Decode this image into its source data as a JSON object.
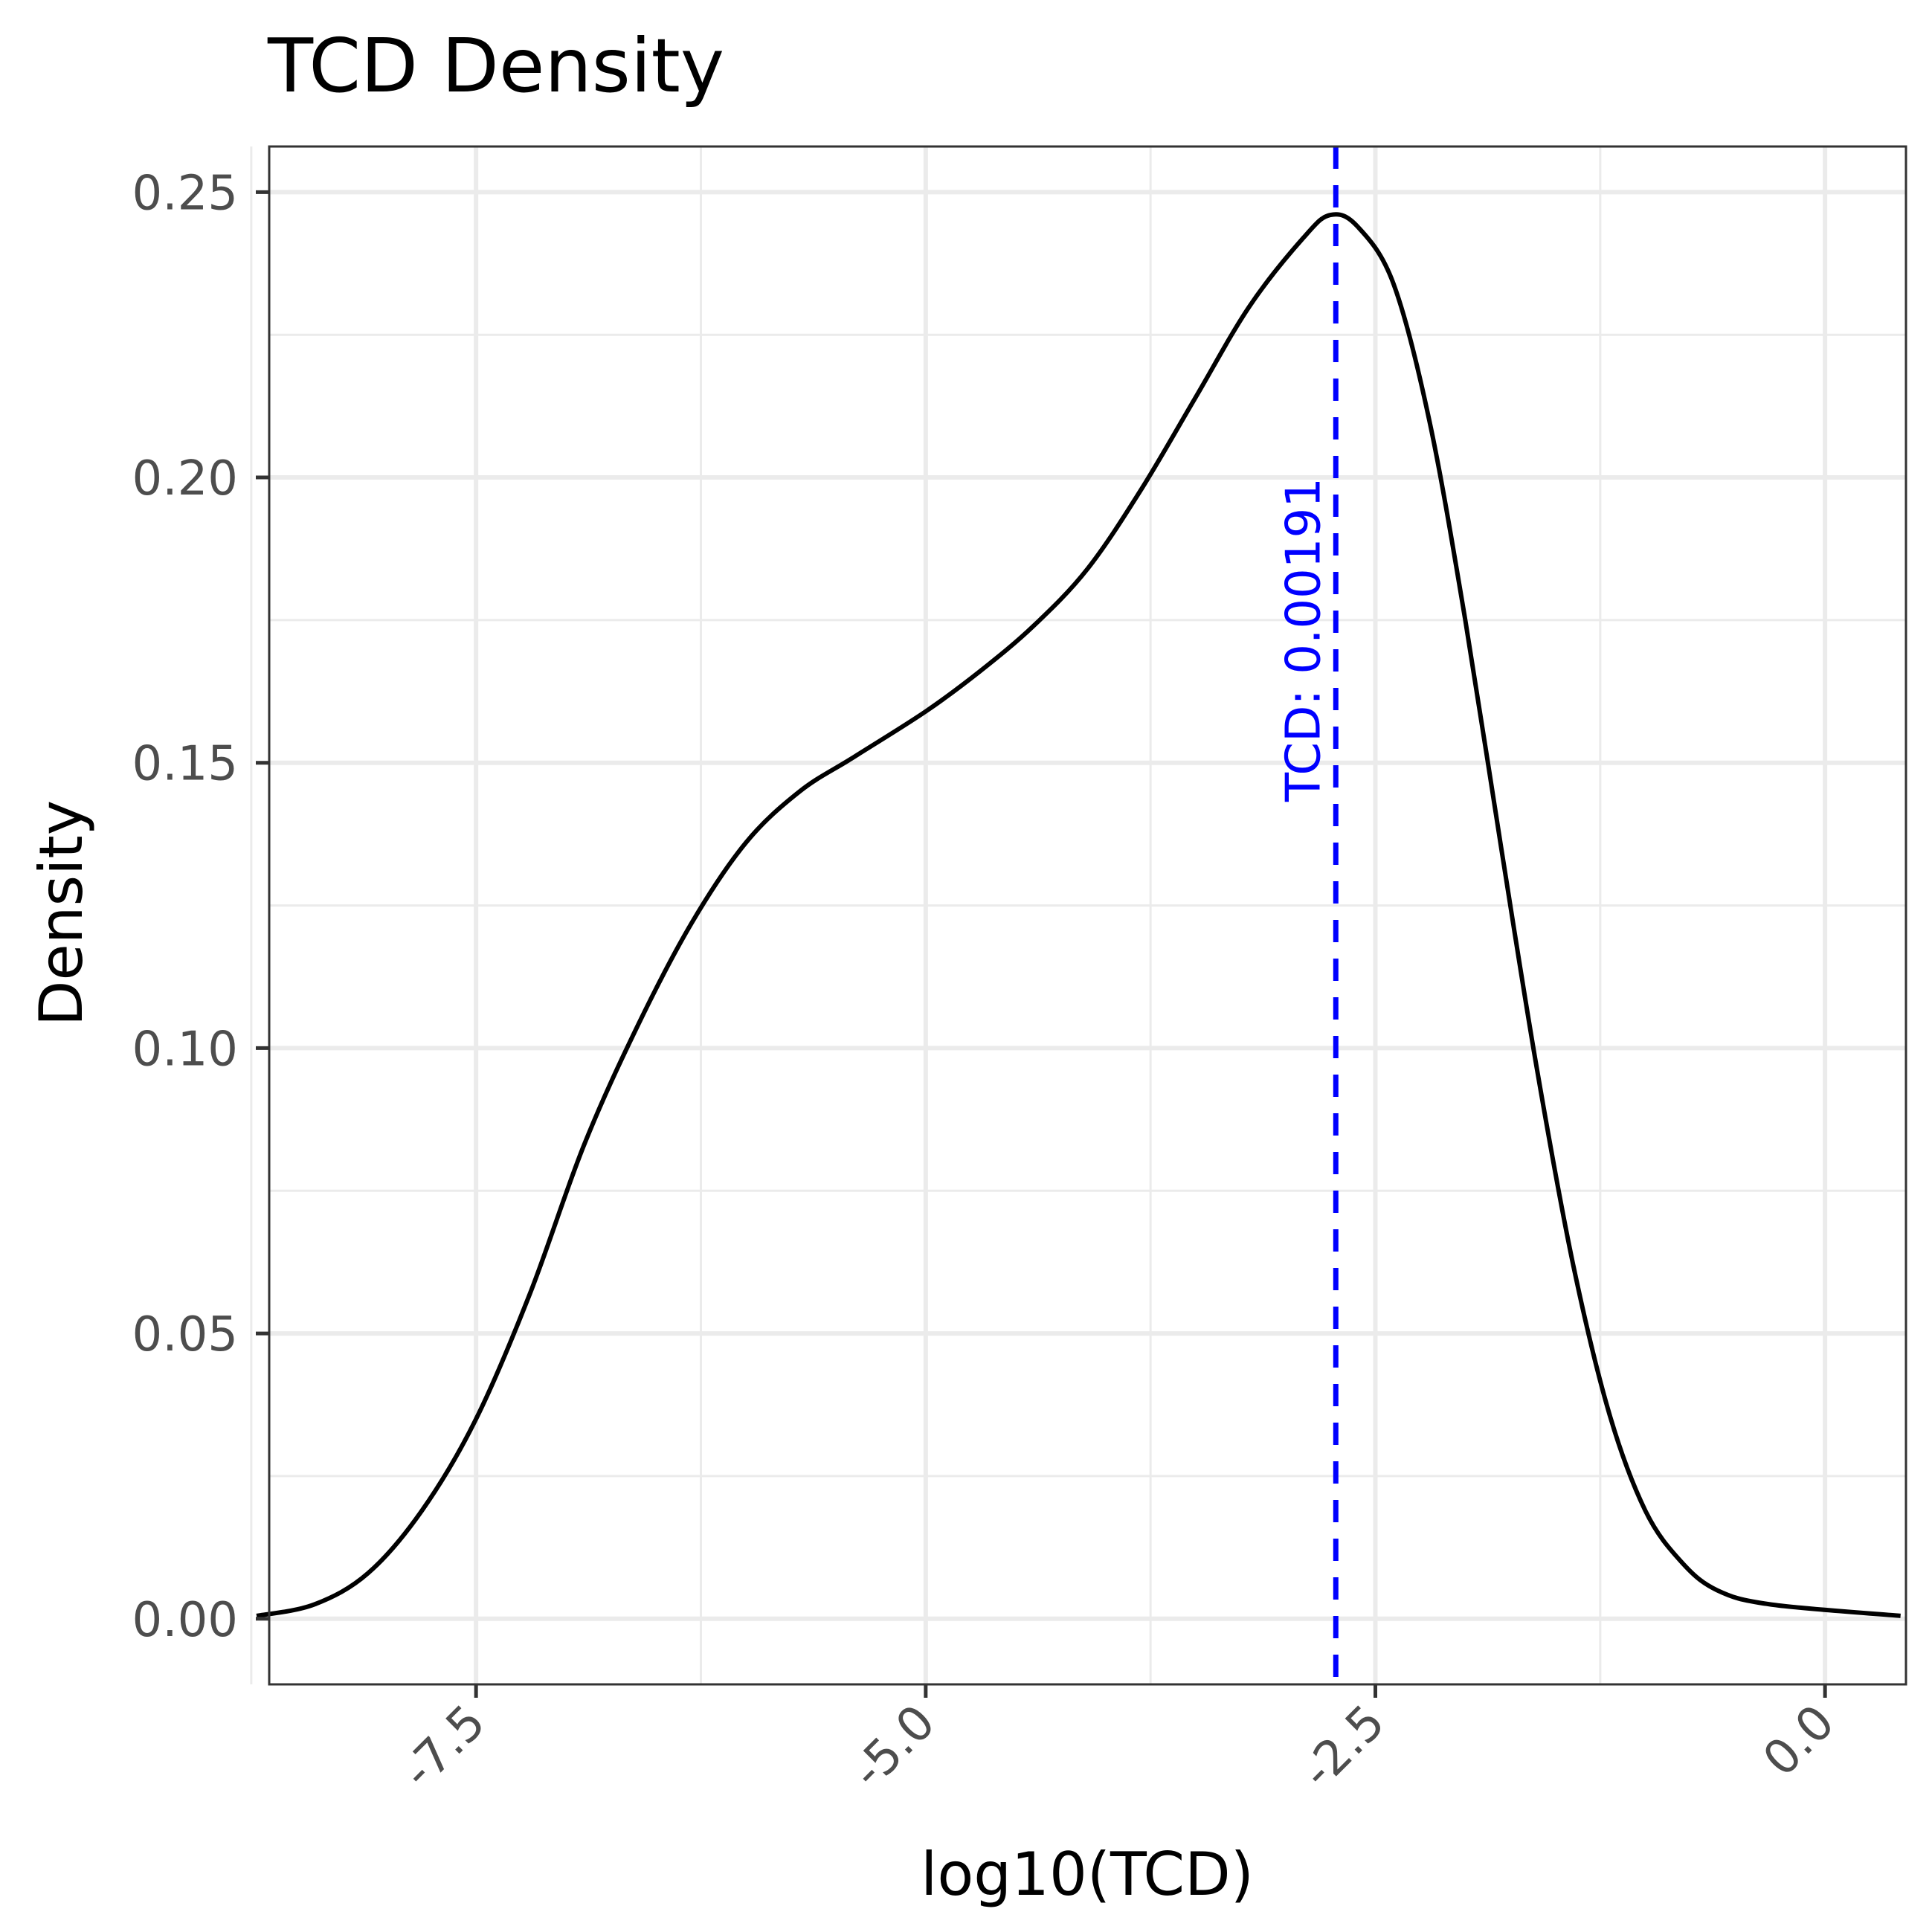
{
  "chart_data": {
    "type": "line",
    "title": "TCD Density",
    "xlabel": "log10(TCD)",
    "ylabel": "Density",
    "xlim": [
      -8.65,
      0.45
    ],
    "ylim": [
      -0.0115,
      0.258
    ],
    "x_ticks": [
      -7.5,
      -5.0,
      -2.5,
      0.0
    ],
    "x_tick_labels": [
      "-7.5",
      "-5.0",
      "-2.5",
      "0.0"
    ],
    "y_ticks": [
      0.0,
      0.05,
      0.1,
      0.15,
      0.2,
      0.25
    ],
    "y_tick_labels": [
      "0.00",
      "0.05",
      "0.10",
      "0.15",
      "0.20",
      "0.25"
    ],
    "x_minor_ticks": [
      -8.75,
      -6.25,
      -3.75,
      -1.25
    ],
    "y_minor_ticks": [
      0.025,
      0.075,
      0.125,
      0.175,
      0.225
    ],
    "grid": true,
    "series": [
      {
        "color": "#000000",
        "points": [
          [
            -8.72,
            0.0005
          ],
          [
            -8.4,
            0.0025
          ],
          [
            -8.1,
            0.008
          ],
          [
            -7.8,
            0.019
          ],
          [
            -7.5,
            0.035
          ],
          [
            -7.2,
            0.057
          ],
          [
            -6.9,
            0.083
          ],
          [
            -6.6,
            0.104
          ],
          [
            -6.3,
            0.122
          ],
          [
            -6.0,
            0.136
          ],
          [
            -5.7,
            0.145
          ],
          [
            -5.4,
            0.151
          ],
          [
            -5.0,
            0.159
          ],
          [
            -4.7,
            0.166
          ],
          [
            -4.4,
            0.174
          ],
          [
            -4.1,
            0.184
          ],
          [
            -3.8,
            0.198
          ],
          [
            -3.5,
            0.214
          ],
          [
            -3.2,
            0.23
          ],
          [
            -2.9,
            0.242
          ],
          [
            -2.75,
            0.246
          ],
          [
            -2.6,
            0.244
          ],
          [
            -2.4,
            0.234
          ],
          [
            -2.2,
            0.21
          ],
          [
            -2.0,
            0.175
          ],
          [
            -1.8,
            0.135
          ],
          [
            -1.6,
            0.096
          ],
          [
            -1.4,
            0.062
          ],
          [
            -1.2,
            0.036
          ],
          [
            -1.0,
            0.019
          ],
          [
            -0.8,
            0.01
          ],
          [
            -0.6,
            0.005
          ],
          [
            -0.3,
            0.0025
          ],
          [
            0.42,
            0.0005
          ]
        ]
      }
    ],
    "annotation": {
      "label": "TCD: 0.00191",
      "x": -2.72,
      "color": "#0000ff",
      "line_style": "dashed"
    }
  }
}
